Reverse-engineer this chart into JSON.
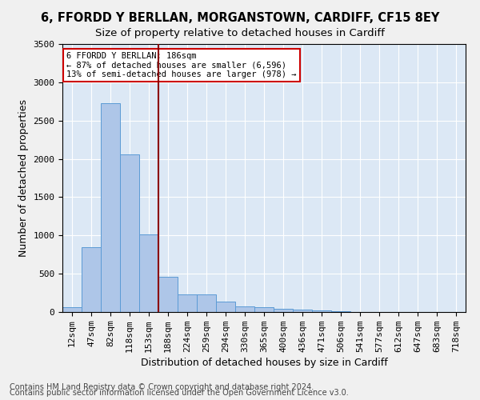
{
  "title_line1": "6, FFORDD Y BERLLAN, MORGANSTOWN, CARDIFF, CF15 8EY",
  "title_line2": "Size of property relative to detached houses in Cardiff",
  "xlabel": "Distribution of detached houses by size in Cardiff",
  "ylabel": "Number of detached properties",
  "bar_values": [
    60,
    850,
    2730,
    2060,
    1010,
    460,
    230,
    230,
    140,
    75,
    60,
    40,
    30,
    20,
    10,
    5,
    5,
    5,
    5,
    5,
    3
  ],
  "bar_labels": [
    "12sqm",
    "47sqm",
    "82sqm",
    "118sqm",
    "153sqm",
    "188sqm",
    "224sqm",
    "259sqm",
    "294sqm",
    "330sqm",
    "365sqm",
    "400sqm",
    "436sqm",
    "471sqm",
    "506sqm",
    "541sqm",
    "577sqm",
    "612sqm",
    "647sqm",
    "683sqm",
    "718sqm"
  ],
  "bar_color": "#aec6e8",
  "bar_edge_color": "#5b9bd5",
  "vline_index": 5,
  "vline_color": "#8b0000",
  "ylim": [
    0,
    3500
  ],
  "yticks": [
    0,
    500,
    1000,
    1500,
    2000,
    2500,
    3000,
    3500
  ],
  "annotation_text": "6 FFORDD Y BERLLAN: 186sqm\n← 87% of detached houses are smaller (6,596)\n13% of semi-detached houses are larger (978) →",
  "annotation_box_color": "#ffffff",
  "annotation_box_edge": "#cc0000",
  "footer_line1": "Contains HM Land Registry data © Crown copyright and database right 2024.",
  "footer_line2": "Contains public sector information licensed under the Open Government Licence v3.0.",
  "background_color": "#dce8f5",
  "grid_color": "#ffffff",
  "title_fontsize": 10.5,
  "subtitle_fontsize": 9.5,
  "axis_label_fontsize": 9,
  "tick_fontsize": 8,
  "footer_fontsize": 7
}
